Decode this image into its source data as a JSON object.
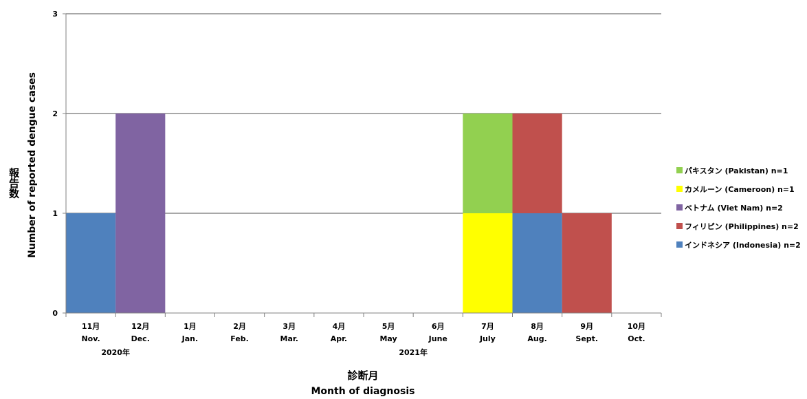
{
  "chart_data": {
    "type": "bar",
    "stacked": true,
    "categories": [
      {
        "month": "11月",
        "en": "Nov."
      },
      {
        "month": "12月",
        "en": "Dec."
      },
      {
        "month": "1月",
        "en": "Jan."
      },
      {
        "month": "2月",
        "en": "Feb."
      },
      {
        "month": "3月",
        "en": "Mar."
      },
      {
        "month": "4月",
        "en": "Apr."
      },
      {
        "month": "5月",
        "en": "May"
      },
      {
        "month": "6月",
        "en": "June"
      },
      {
        "month": "7月",
        "en": "July"
      },
      {
        "month": "8月",
        "en": "Aug."
      },
      {
        "month": "9月",
        "en": "Sept."
      },
      {
        "month": "10月",
        "en": "Oct."
      }
    ],
    "year_labels": [
      {
        "label": "2020年",
        "spans": [
          0,
          1
        ]
      },
      {
        "label": "2021年",
        "spans": [
          2,
          11
        ]
      }
    ],
    "series": [
      {
        "name": "インドネシア (Indonesia) n=2",
        "color": "#4f81bd",
        "values": [
          1,
          0,
          0,
          0,
          0,
          0,
          0,
          0,
          0,
          1,
          0,
          0
        ]
      },
      {
        "name": "フィリピン (Philippines) n=2",
        "color": "#c0504d",
        "values": [
          0,
          0,
          0,
          0,
          0,
          0,
          0,
          0,
          0,
          1,
          1,
          0
        ]
      },
      {
        "name": "ベトナム (Viet Nam) n=2",
        "color": "#8064a2",
        "values": [
          0,
          2,
          0,
          0,
          0,
          0,
          0,
          0,
          0,
          0,
          0,
          0
        ]
      },
      {
        "name": "カメルーン (Cameroon) n=1",
        "color": "#ffff00",
        "values": [
          0,
          0,
          0,
          0,
          0,
          0,
          0,
          0,
          1,
          0,
          0,
          0
        ]
      },
      {
        "name": "パキスタン (Pakistan) n=1",
        "color": "#92d050",
        "values": [
          0,
          0,
          0,
          0,
          0,
          0,
          0,
          0,
          1,
          0,
          0,
          0
        ]
      }
    ],
    "yticks": [
      0,
      1,
      2,
      3
    ],
    "ylim": [
      0,
      3
    ],
    "ylabel_jp": "報告数",
    "ylabel_en": "Number of reported dengue cases",
    "xlabel_jp": "診断月",
    "xlabel_en": "Month of diagnosis",
    "grid": "horizontal",
    "legend_position": "right"
  }
}
